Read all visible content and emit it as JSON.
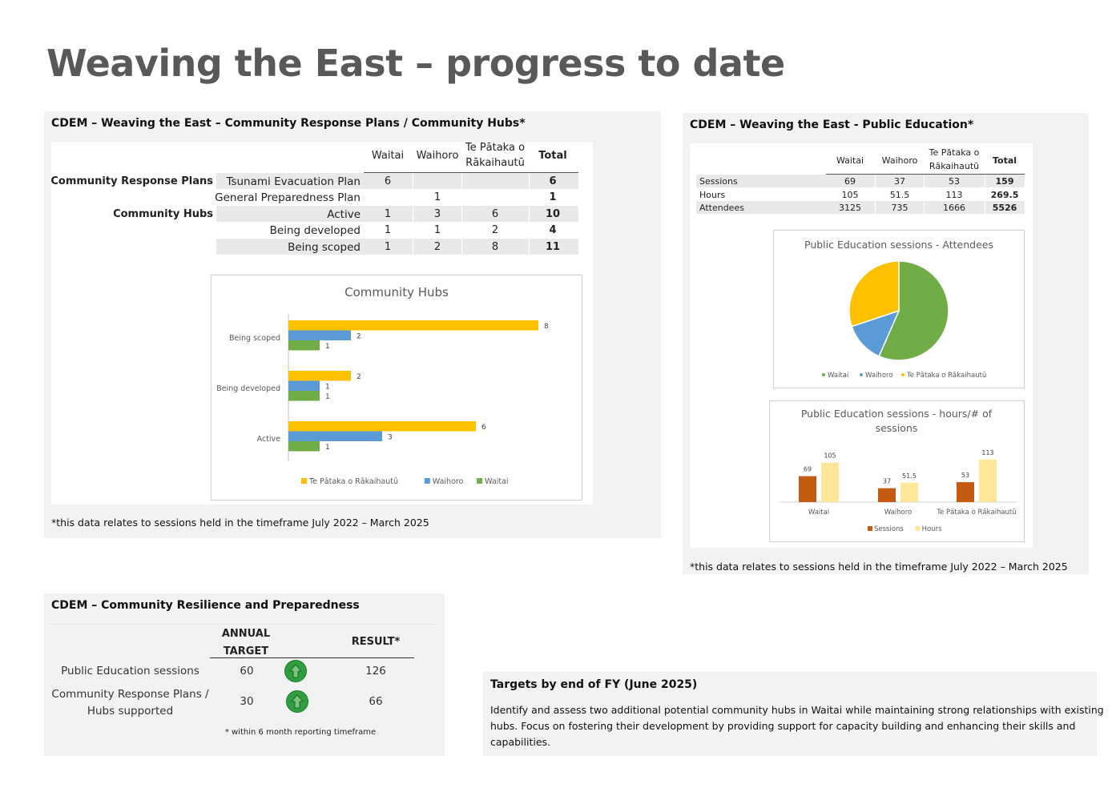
{
  "page": {
    "title": "Weaving the East – progress to date"
  },
  "panel_hubs": {
    "heading": "CDEM – Weaving the East – Community Response Plans / Community Hubs*",
    "columns": [
      "Waitai",
      "Waihoro",
      "Te Pātaka o",
      "Rākaihautū",
      "Total"
    ],
    "rows": [
      {
        "group": "Community Response Plans",
        "label": "Tsunami Evacuation Plan",
        "waitai": "6",
        "waihoro": "",
        "te_pataka": "",
        "total": "6"
      },
      {
        "group": "",
        "label": "General Preparedness Plan",
        "waitai": "",
        "waihoro": "1",
        "te_pataka": "",
        "total": "1"
      },
      {
        "group": "Community Hubs",
        "label": "Active",
        "waitai": "1",
        "waihoro": "3",
        "te_pataka": "6",
        "total": "10"
      },
      {
        "group": "",
        "label": "Being developed",
        "waitai": "1",
        "waihoro": "1",
        "te_pataka": "2",
        "total": "4"
      },
      {
        "group": "",
        "label": "Being scoped",
        "waitai": "1",
        "waihoro": "2",
        "te_pataka": "8",
        "total": "11"
      }
    ],
    "note": "*this data relates to sessions held in the timeframe July 2022 – March 2025"
  },
  "panel_public_ed": {
    "heading": "CDEM – Weaving the East -  Public Education*",
    "columns": [
      "Waitai",
      "Waihoro",
      "Te Pātaka o",
      "Rākaihautū",
      "Total"
    ],
    "rows": [
      {
        "label": "Sessions",
        "waitai": "69",
        "waihoro": "37",
        "te_pataka": "53",
        "total": "159"
      },
      {
        "label": "Hours",
        "waitai": "105",
        "waihoro": "51.5",
        "te_pataka": "113",
        "total": "269.5"
      },
      {
        "label": "Attendees",
        "waitai": "3125",
        "waihoro": "735",
        "te_pataka": "1666",
        "total": "5526"
      }
    ],
    "note": "*this data relates to sessions held in the timeframe July 2022 – March 2025"
  },
  "panel_resilience": {
    "heading": "CDEM – Community Resilience and Preparedness",
    "col_target_1": "ANNUAL",
    "col_target_2": "TARGET",
    "col_result": "RESULT*",
    "rows": [
      {
        "label_1": "Public Education sessions",
        "label_2": "",
        "target": "60",
        "result": "126",
        "icon": "green-up-arrow-icon"
      },
      {
        "label_1": "Community Response Plans /",
        "label_2": "Hubs supported",
        "target": "30",
        "result": "66",
        "icon": "green-up-arrow-icon"
      }
    ],
    "footnote": "* within 6 month reporting timeframe"
  },
  "panel_targets": {
    "heading": "Targets by end of FY (June 2025)",
    "lines": [
      "Identify and assess two additional potential community hubs in Waitai while maintaining strong relationships with existing",
      "hubs. Focus on fostering their development by providing support for capacity building and enhancing their skills and",
      "capabilities."
    ]
  },
  "chart_data": [
    {
      "type": "bar",
      "orientation": "horizontal",
      "title": "Community Hubs",
      "categories": [
        "Being scoped",
        "Being developed",
        "Active"
      ],
      "series": [
        {
          "name": "Te Pātaka o Rākaihautū",
          "values": [
            8,
            2,
            6
          ],
          "color": "#ffc000"
        },
        {
          "name": "Waihoro",
          "values": [
            2,
            1,
            3
          ],
          "color": "#5b9bd5"
        },
        {
          "name": "Waitai",
          "values": [
            1,
            1,
            1
          ],
          "color": "#70ad47"
        }
      ],
      "legend": "bottom",
      "grid": false
    },
    {
      "type": "pie",
      "title": "Public Education sessions - Attendees",
      "labels": [
        "Waitai",
        "Waihoro",
        "Te Pātaka o Rākaihautū"
      ],
      "values": [
        3125,
        735,
        1666
      ],
      "colors": [
        "#70ad47",
        "#5b9bd5",
        "#ffc000"
      ],
      "legend": "bottom"
    },
    {
      "type": "bar",
      "orientation": "vertical",
      "title_1": "Public Education sessions - hours/# of",
      "title_2": "sessions",
      "categories": [
        "Waitai",
        "Waihoro",
        "Te Pātaka o Rākaihautū"
      ],
      "series": [
        {
          "name": "Sessions",
          "values": [
            69,
            37,
            53
          ],
          "color": "#c55a11"
        },
        {
          "name": "Hours",
          "values": [
            105,
            51.5,
            113
          ],
          "color": "#ffe699"
        }
      ],
      "legend": "bottom",
      "grid": false
    }
  ]
}
